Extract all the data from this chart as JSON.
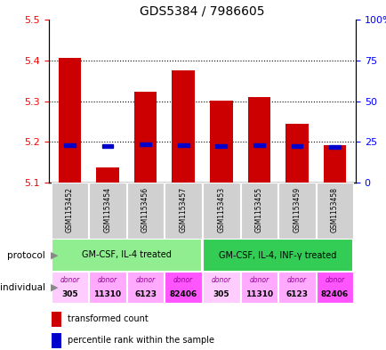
{
  "title": "GDS5384 / 7986605",
  "samples": [
    "GSM1153452",
    "GSM1153454",
    "GSM1153456",
    "GSM1153457",
    "GSM1153453",
    "GSM1153455",
    "GSM1153459",
    "GSM1153458"
  ],
  "red_values": [
    5.407,
    5.137,
    5.323,
    5.375,
    5.302,
    5.31,
    5.245,
    5.192
  ],
  "blue_pct": [
    23.0,
    22.5,
    23.5,
    23.0,
    22.5,
    23.0,
    22.5,
    22.0
  ],
  "ylim_left": [
    5.1,
    5.5
  ],
  "ylim_right": [
    0,
    100
  ],
  "yticks_left": [
    5.1,
    5.2,
    5.3,
    5.4,
    5.5
  ],
  "yticks_right": [
    0,
    25,
    50,
    75,
    100
  ],
  "ytick_labels_right": [
    "0",
    "25",
    "50",
    "75",
    "100%"
  ],
  "bar_color": "#cc0000",
  "blue_color": "#0000cc",
  "grid_lines": [
    5.2,
    5.3,
    5.4
  ],
  "protocol_groups": [
    {
      "label": "GM-CSF, IL-4 treated",
      "start": 0,
      "end": 3,
      "color": "#90ee90"
    },
    {
      "label": "GM-CSF, IL-4, INF-γ treated",
      "start": 4,
      "end": 7,
      "color": "#33cc55"
    }
  ],
  "individual_labels": [
    "donor\n305",
    "donor\n11310",
    "donor\n6123",
    "donor\n82406",
    "donor\n305",
    "donor\n11310",
    "donor\n6123",
    "donor\n82406"
  ],
  "individual_bg_colors": [
    "#ffccff",
    "#ffaaff",
    "#ffaaff",
    "#ff55ff",
    "#ffccff",
    "#ffaaff",
    "#ffaaff",
    "#ff55ff"
  ],
  "sample_bg_color": "#d0d0d0",
  "legend": [
    {
      "color": "#cc0000",
      "label": "transformed count"
    },
    {
      "color": "#0000cc",
      "label": "percentile rank within the sample"
    }
  ]
}
